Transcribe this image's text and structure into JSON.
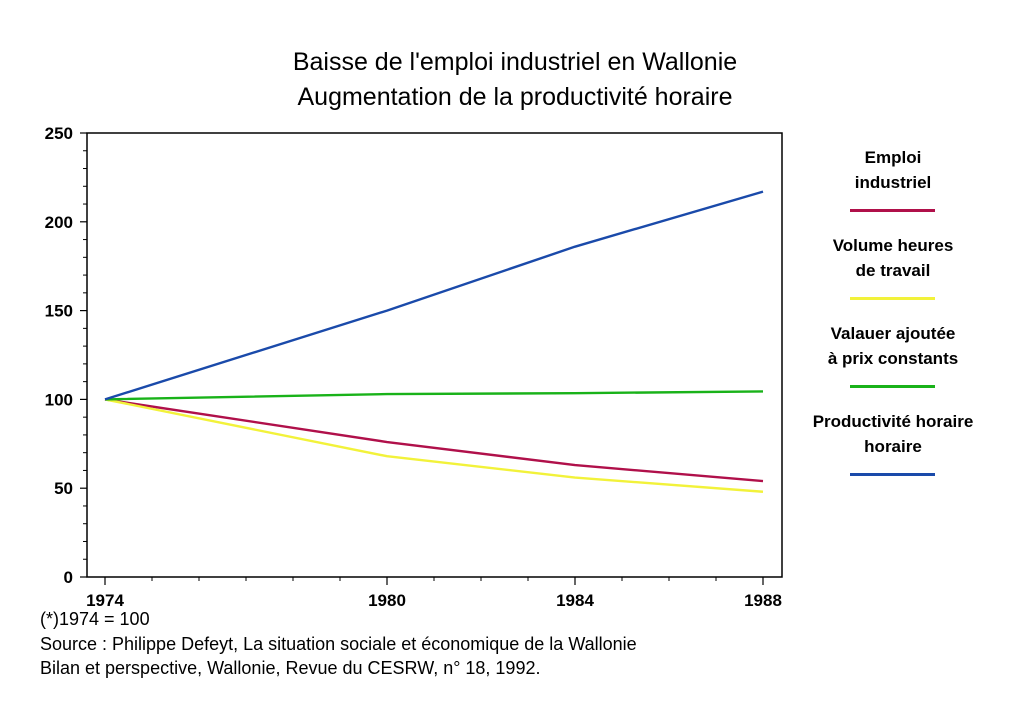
{
  "chart_data": {
    "type": "line",
    "title": "Baisse de l'emploi industriel en Wallonie",
    "subtitle": "Augmentation de la productivité horaire",
    "x": [
      1974,
      1980,
      1984,
      1988
    ],
    "x_tick_labels": [
      "1974",
      "1980",
      "1984",
      "1988"
    ],
    "ylim": [
      0,
      250
    ],
    "y_ticks": [
      0,
      50,
      100,
      150,
      200,
      250
    ],
    "grid": false,
    "legend_position": "right",
    "series": [
      {
        "name": "Emploi industriel",
        "label_lines": [
          "Emploi",
          "industriel"
        ],
        "color": "#b0104a",
        "values": [
          100,
          76,
          63,
          54
        ]
      },
      {
        "name": "Volume heures de travail",
        "label_lines": [
          "Volume heures",
          "de travail"
        ],
        "color": "#f2f23a",
        "values": [
          100,
          68,
          56,
          48
        ]
      },
      {
        "name": "Valauer ajoutée à prix constants",
        "label_lines": [
          "Valauer ajoutée",
          "à prix constants"
        ],
        "color": "#19b219",
        "values": [
          100,
          103,
          103.5,
          104.5
        ]
      },
      {
        "name": "Productivité horaire horaire",
        "label_lines": [
          "Productivité horaire",
          "horaire"
        ],
        "color": "#1a4aaa",
        "values": [
          100,
          150,
          186,
          217
        ]
      }
    ]
  },
  "notes": {
    "base": "(*)1974 = 100",
    "source_line1": "Source : Philippe Defeyt, La situation sociale et économique de la Wallonie",
    "source_line2": "Bilan et perspective, Wallonie, Revue du CESRW, n° 18, 1992."
  }
}
